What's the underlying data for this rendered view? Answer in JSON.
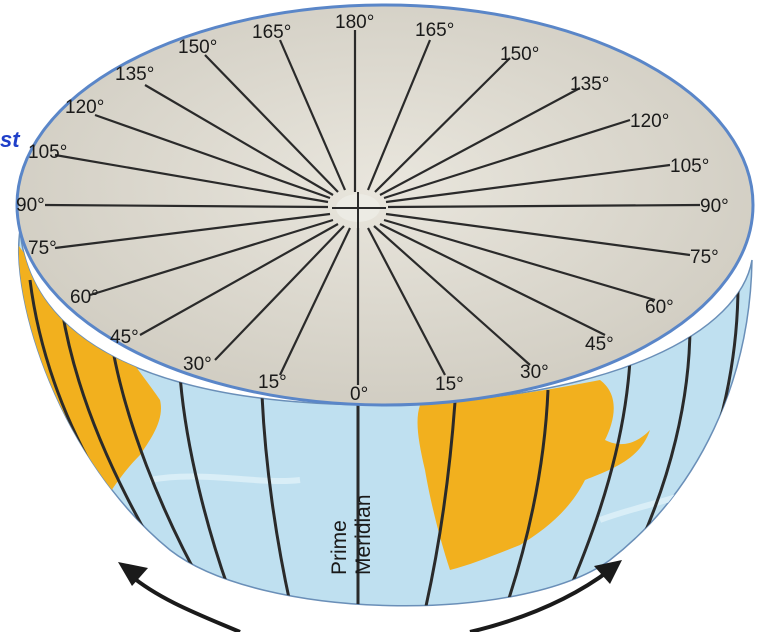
{
  "diagram": {
    "top_labels": [
      {
        "id": "deg-180",
        "text": "180°"
      },
      {
        "id": "deg-165-w",
        "text": "165°"
      },
      {
        "id": "deg-150-w",
        "text": "150°"
      },
      {
        "id": "deg-135-w",
        "text": "135°"
      },
      {
        "id": "deg-120-w",
        "text": "120°"
      },
      {
        "id": "deg-105-w",
        "text": "105°"
      },
      {
        "id": "deg-90-w",
        "text": "90°"
      },
      {
        "id": "deg-75-w",
        "text": "75°"
      },
      {
        "id": "deg-60-w",
        "text": "60°"
      },
      {
        "id": "deg-45-w",
        "text": "45°"
      },
      {
        "id": "deg-30-w",
        "text": "30°"
      },
      {
        "id": "deg-15-w",
        "text": "15°"
      },
      {
        "id": "deg-0",
        "text": "0°"
      },
      {
        "id": "deg-15-e",
        "text": "15°"
      },
      {
        "id": "deg-30-e",
        "text": "30°"
      },
      {
        "id": "deg-45-e",
        "text": "45°"
      },
      {
        "id": "deg-60-e",
        "text": "60°"
      },
      {
        "id": "deg-75-e",
        "text": "75°"
      },
      {
        "id": "deg-90-e",
        "text": "90°"
      },
      {
        "id": "deg-105-e",
        "text": "105°"
      },
      {
        "id": "deg-120-e",
        "text": "120°"
      },
      {
        "id": "deg-135-e",
        "text": "135°"
      },
      {
        "id": "deg-150-e",
        "text": "150°"
      },
      {
        "id": "deg-165-e",
        "text": "165°"
      }
    ],
    "prime_meridian_line1": "Prime",
    "prime_meridian_line2": "Meridian",
    "left_edge_text": "st",
    "colors": {
      "top_face": "#d9d6cd",
      "ocean": "#bfe0f0",
      "land": "#f2b01e",
      "lines": "#2a2a2a",
      "rim": "#5a86c8",
      "arrow": "#1a1a1a"
    }
  }
}
